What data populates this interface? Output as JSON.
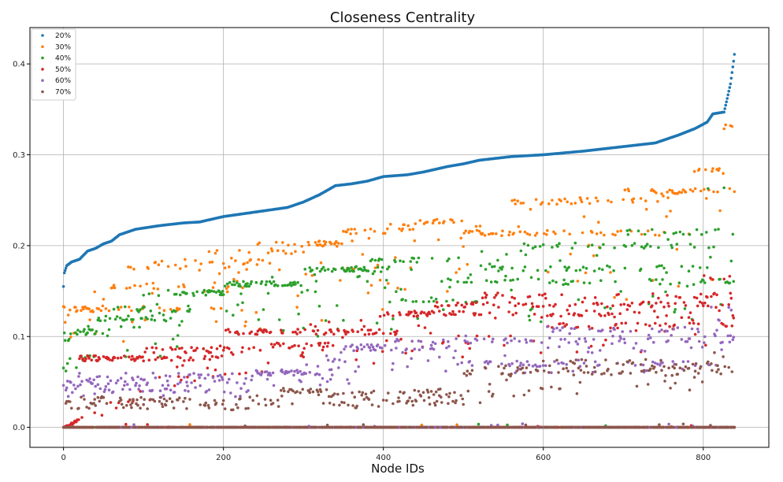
{
  "chart_data": {
    "type": "scatter",
    "title": "Closeness Centrality",
    "xlabel": "Node IDs",
    "ylabel": "",
    "xlim": [
      -42,
      882
    ],
    "ylim": [
      -0.022,
      0.44
    ],
    "xticks": [
      0,
      200,
      400,
      600,
      800
    ],
    "yticks": [
      0.0,
      0.1,
      0.2,
      0.3,
      0.4
    ],
    "xtick_labels": [
      "0",
      "200",
      "400",
      "600",
      "800"
    ],
    "ytick_labels": [
      "0.0",
      "0.1",
      "0.2",
      "0.3",
      "0.4"
    ],
    "grid": true,
    "legend_position": "top-left",
    "node_count": 840,
    "series": [
      {
        "name": "20%",
        "color": "#1f77b4",
        "curve": [
          [
            0,
            0.155
          ],
          [
            1,
            0.17
          ],
          [
            4,
            0.178
          ],
          [
            10,
            0.182
          ],
          [
            20,
            0.185
          ],
          [
            30,
            0.194
          ],
          [
            40,
            0.197
          ],
          [
            50,
            0.202
          ],
          [
            60,
            0.205
          ],
          [
            70,
            0.212
          ],
          [
            90,
            0.218
          ],
          [
            120,
            0.222
          ],
          [
            150,
            0.225
          ],
          [
            170,
            0.226
          ],
          [
            200,
            0.232
          ],
          [
            240,
            0.237
          ],
          [
            280,
            0.242
          ],
          [
            300,
            0.248
          ],
          [
            320,
            0.256
          ],
          [
            340,
            0.266
          ],
          [
            360,
            0.268
          ],
          [
            380,
            0.271
          ],
          [
            400,
            0.276
          ],
          [
            430,
            0.278
          ],
          [
            450,
            0.281
          ],
          [
            480,
            0.287
          ],
          [
            500,
            0.29
          ],
          [
            520,
            0.294
          ],
          [
            560,
            0.298
          ],
          [
            600,
            0.3
          ],
          [
            650,
            0.304
          ],
          [
            700,
            0.309
          ],
          [
            740,
            0.313
          ],
          [
            770,
            0.322
          ],
          [
            790,
            0.329
          ],
          [
            805,
            0.336
          ],
          [
            812,
            0.345
          ],
          [
            826,
            0.347
          ],
          [
            830,
            0.362
          ],
          [
            834,
            0.378
          ],
          [
            838,
            0.403
          ],
          [
            840,
            0.418
          ]
        ]
      },
      {
        "name": "30%",
        "color": "#ff7f0e",
        "levels": [
          [
            0,
            220,
            0.13
          ],
          [
            50,
            240,
            0.155
          ],
          [
            80,
            210,
            0.176
          ],
          [
            100,
            260,
            0.182
          ],
          [
            180,
            290,
            0.194
          ],
          [
            240,
            350,
            0.202
          ],
          [
            350,
            440,
            0.216
          ],
          [
            400,
            500,
            0.226
          ],
          [
            480,
            560,
            0.214
          ],
          [
            560,
            680,
            0.248
          ],
          [
            560,
            760,
            0.214
          ],
          [
            620,
            760,
            0.25
          ],
          [
            700,
            840,
            0.26
          ],
          [
            780,
            840,
            0.282
          ],
          [
            820,
            842,
            0.33
          ]
        ],
        "top_curve": [
          [
            0,
            0.13
          ],
          [
            100,
            0.18
          ],
          [
            200,
            0.192
          ],
          [
            300,
            0.2
          ],
          [
            400,
            0.222
          ],
          [
            500,
            0.24
          ],
          [
            600,
            0.25
          ],
          [
            700,
            0.255
          ],
          [
            800,
            0.27
          ],
          [
            840,
            0.335
          ]
        ]
      },
      {
        "name": "40%",
        "color": "#2ca02c",
        "levels": [
          [
            10,
            60,
            0.105
          ],
          [
            40,
            140,
            0.12
          ],
          [
            60,
            160,
            0.13
          ],
          [
            100,
            200,
            0.148
          ],
          [
            200,
            300,
            0.158
          ],
          [
            300,
            420,
            0.174
          ],
          [
            380,
            500,
            0.184
          ],
          [
            400,
            520,
            0.14
          ],
          [
            480,
            620,
            0.162
          ],
          [
            520,
            840,
            0.175
          ],
          [
            560,
            820,
            0.2
          ],
          [
            600,
            840,
            0.16
          ],
          [
            700,
            840,
            0.215
          ],
          [
            800,
            842,
            0.265
          ]
        ],
        "top_curve": [
          [
            0,
            0.105
          ],
          [
            200,
            0.16
          ],
          [
            400,
            0.185
          ],
          [
            600,
            0.2
          ],
          [
            800,
            0.21
          ],
          [
            840,
            0.265
          ]
        ]
      },
      {
        "name": "50%",
        "color": "#d62728",
        "levels": [
          [
            20,
            200,
            0.076
          ],
          [
            100,
            240,
            0.085
          ],
          [
            200,
            420,
            0.105
          ],
          [
            260,
            340,
            0.09
          ],
          [
            400,
            840,
            0.125
          ],
          [
            460,
            840,
            0.135
          ],
          [
            520,
            840,
            0.145
          ],
          [
            600,
            840,
            0.112
          ],
          [
            780,
            842,
            0.165
          ]
        ],
        "top_curve": [
          [
            0,
            0.0
          ],
          [
            200,
            0.1
          ],
          [
            400,
            0.127
          ],
          [
            600,
            0.145
          ],
          [
            800,
            0.15
          ],
          [
            840,
            0.19
          ]
        ]
      },
      {
        "name": "60%",
        "color": "#9467bd",
        "levels": [
          [
            240,
            320,
            0.06
          ],
          [
            350,
            500,
            0.088
          ],
          [
            400,
            840,
            0.095
          ],
          [
            500,
            840,
            0.07
          ],
          [
            600,
            840,
            0.108
          ],
          [
            700,
            840,
            0.1
          ],
          [
            800,
            842,
            0.13
          ]
        ],
        "top_curve": [
          [
            240,
            0.06
          ],
          [
            400,
            0.095
          ],
          [
            600,
            0.108
          ],
          [
            800,
            0.11
          ],
          [
            840,
            0.14
          ]
        ]
      },
      {
        "name": "70%",
        "color": "#8c564b",
        "levels": [
          [
            270,
            330,
            0.04
          ],
          [
            500,
            840,
            0.06
          ],
          [
            520,
            840,
            0.065
          ],
          [
            600,
            840,
            0.072
          ],
          [
            700,
            840,
            0.065
          ],
          [
            800,
            840,
            0.07
          ],
          [
            830,
            842,
            0.095
          ]
        ],
        "top_curve": [
          [
            270,
            0.035
          ],
          [
            500,
            0.045
          ],
          [
            600,
            0.065
          ],
          [
            800,
            0.075
          ],
          [
            840,
            0.1
          ]
        ]
      }
    ]
  }
}
